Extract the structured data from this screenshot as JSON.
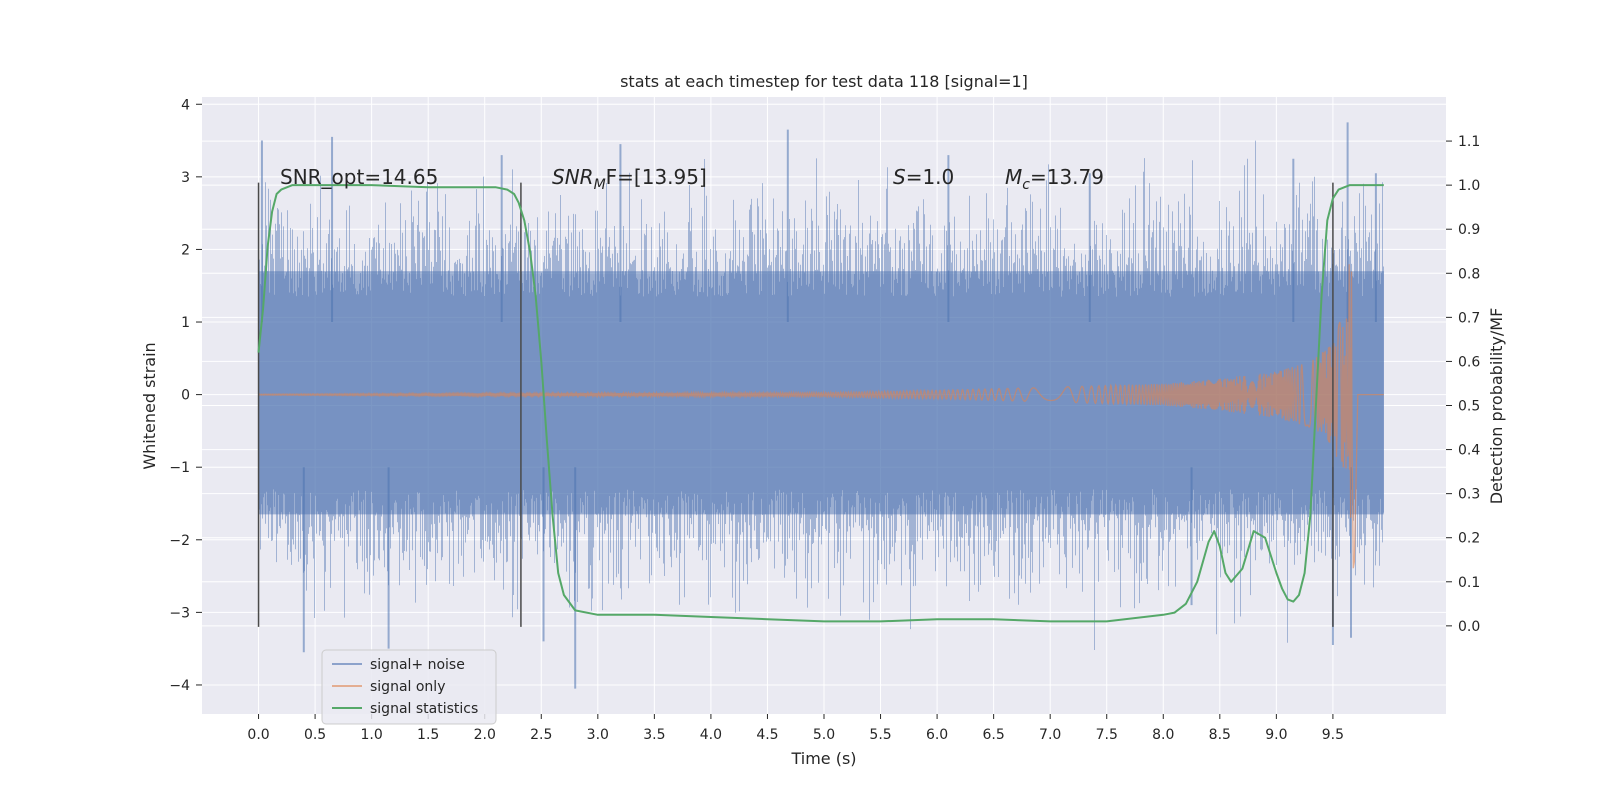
{
  "chart_data": {
    "type": "line",
    "title": "stats at each timestep for test data 118 [signal=1]",
    "xlabel": "Time (s)",
    "ylabel": "Whitened strain",
    "ylabel_right": "Detection probability/MF",
    "xlim": [
      -0.5,
      10.5
    ],
    "ylim": [
      -4.4,
      4.1
    ],
    "ylim_right": [
      -0.2,
      1.2
    ],
    "x_ticks": [
      "0.0",
      "0.5",
      "1.0",
      "1.5",
      "2.0",
      "2.5",
      "3.0",
      "3.5",
      "4.0",
      "4.5",
      "5.0",
      "5.5",
      "6.0",
      "6.5",
      "7.0",
      "7.5",
      "8.0",
      "8.5",
      "9.0",
      "9.5"
    ],
    "x_tick_values": [
      0.0,
      0.5,
      1.0,
      1.5,
      2.0,
      2.5,
      3.0,
      3.5,
      4.0,
      4.5,
      5.0,
      5.5,
      6.0,
      6.5,
      7.0,
      7.5,
      8.0,
      8.5,
      9.0,
      9.5
    ],
    "y_ticks": [
      "4",
      "3",
      "2",
      "1",
      "0",
      "−1",
      "−2",
      "−3",
      "−4"
    ],
    "y_tick_values": [
      4,
      3,
      2,
      1,
      0,
      -1,
      -2,
      -3,
      -4
    ],
    "y_right_ticks": [
      "1.1",
      "1.0",
      "0.9",
      "0.8",
      "0.7",
      "0.6",
      "0.5",
      "0.4",
      "0.3",
      "0.2",
      "0.1",
      "0.0"
    ],
    "y_right_tick_values": [
      1.1,
      1.0,
      0.9,
      0.8,
      0.7,
      0.6,
      0.5,
      0.4,
      0.3,
      0.2,
      0.1,
      0.0
    ],
    "grid": true,
    "legend_position": "lower-left",
    "colors": {
      "background": "#eaeaf2",
      "noise": "#4c72b0",
      "signal": "#dd8452",
      "stats": "#55a868",
      "vline": "#4a4a4a"
    },
    "annotations": {
      "snr_opt": "SNR_opt=14.65",
      "snr_mf_main": "SNR",
      "snr_mf_sub": "M",
      "snr_mf_rest": "F=[13.95]",
      "s_italic": "S",
      "s_value": "=1.0",
      "mc_main": "M",
      "mc_sub": "c",
      "mc_value": "=13.79"
    },
    "vertical_markers_x": [
      0.0,
      2.32,
      9.5
    ],
    "vertical_marker_range_y": [
      -3.2,
      2.92
    ],
    "series": [
      {
        "name": "signal+ noise",
        "x_range": [
          0.0,
          9.95
        ],
        "band_y": [
          -1.65,
          1.7
        ],
        "peak_y": [
          3.75,
          -4.05
        ]
      },
      {
        "name": "signal only",
        "x_range": [
          0.0,
          9.95
        ],
        "envelope_x": [
          0.0,
          5.0,
          6.0,
          7.0,
          8.0,
          8.5,
          9.0,
          9.3,
          9.5,
          9.62,
          9.68
        ],
        "envelope_amp": [
          0.005,
          0.03,
          0.06,
          0.1,
          0.15,
          0.22,
          0.32,
          0.45,
          0.7,
          1.3,
          2.55
        ]
      },
      {
        "name": "signal statistics",
        "x": [
          0.0,
          0.04,
          0.08,
          0.12,
          0.16,
          0.2,
          0.3,
          0.5,
          1.0,
          1.5,
          2.0,
          2.1,
          2.2,
          2.26,
          2.3,
          2.35,
          2.4,
          2.45,
          2.5,
          2.55,
          2.6,
          2.65,
          2.7,
          2.8,
          3.0,
          3.5,
          4.0,
          4.5,
          5.0,
          5.5,
          6.0,
          6.5,
          7.0,
          7.5,
          8.0,
          8.1,
          8.2,
          8.3,
          8.4,
          8.45,
          8.5,
          8.55,
          8.6,
          8.7,
          8.8,
          8.9,
          9.0,
          9.05,
          9.1,
          9.15,
          9.2,
          9.25,
          9.3,
          9.35,
          9.4,
          9.45,
          9.5,
          9.55,
          9.6,
          9.65,
          9.7,
          9.8,
          9.95
        ],
        "y": [
          0.62,
          0.72,
          0.86,
          0.94,
          0.98,
          0.99,
          1.0,
          1.0,
          1.0,
          0.995,
          0.995,
          0.995,
          0.99,
          0.98,
          0.96,
          0.92,
          0.85,
          0.75,
          0.6,
          0.42,
          0.25,
          0.12,
          0.07,
          0.035,
          0.025,
          0.025,
          0.02,
          0.015,
          0.01,
          0.01,
          0.015,
          0.015,
          0.01,
          0.01,
          0.025,
          0.03,
          0.05,
          0.1,
          0.19,
          0.215,
          0.18,
          0.12,
          0.1,
          0.13,
          0.215,
          0.2,
          0.12,
          0.085,
          0.06,
          0.055,
          0.07,
          0.12,
          0.25,
          0.5,
          0.75,
          0.92,
          0.97,
          0.99,
          0.995,
          1.0,
          1.0,
          1.0,
          1.0
        ]
      }
    ]
  },
  "legend": {
    "items": [
      {
        "label": "signal+ noise",
        "color": "#4c72b0"
      },
      {
        "label": "signal only",
        "color": "#dd8452"
      },
      {
        "label": "signal statistics",
        "color": "#55a868"
      }
    ]
  }
}
